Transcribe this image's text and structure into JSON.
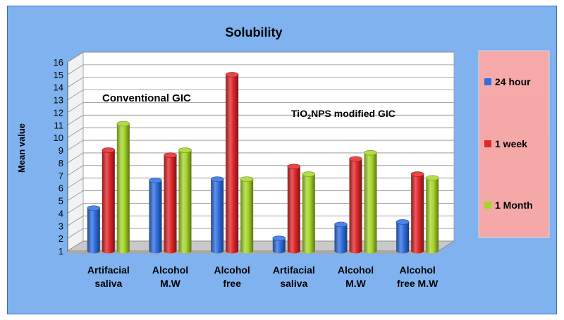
{
  "chart_data": {
    "type": "bar",
    "title": "Solubility",
    "ylabel": "Mean value",
    "ylim": [
      1,
      16
    ],
    "y_ticks": [
      "1",
      "2",
      "3",
      "4",
      "5",
      "6",
      "7",
      "8",
      "9",
      "10",
      "11",
      "12",
      "13",
      "14",
      "15",
      "16"
    ],
    "categories": [
      [
        "Artifacial",
        "saliva"
      ],
      [
        "Alcohol",
        "M.W"
      ],
      [
        "Alcohol",
        "free"
      ],
      [
        "Artifacial",
        "saliva"
      ],
      [
        "Alcohol",
        "M.W"
      ],
      [
        "Alcohol",
        "free M.W"
      ]
    ],
    "series": [
      {
        "name": "24 hour",
        "color": "#2f6ee0",
        "values": [
          4.4,
          6.6,
          6.7,
          2.0,
          3.1,
          3.3
        ]
      },
      {
        "name": "1 week",
        "color": "#e0272a",
        "values": [
          9.0,
          8.6,
          15.0,
          7.7,
          8.3,
          7.1
        ]
      },
      {
        "name": "1 Month",
        "color": "#a6d52a",
        "values": [
          11.1,
          9.0,
          6.7,
          7.1,
          8.8,
          6.8
        ]
      }
    ],
    "annotations": [
      {
        "label": "Conventional GIC"
      },
      {
        "label": "TiO2NPS modified GIC",
        "main": "TiO",
        "sub": "2",
        "rest": "NPS modified GIC"
      }
    ],
    "legend_position": "right",
    "grid": true
  }
}
